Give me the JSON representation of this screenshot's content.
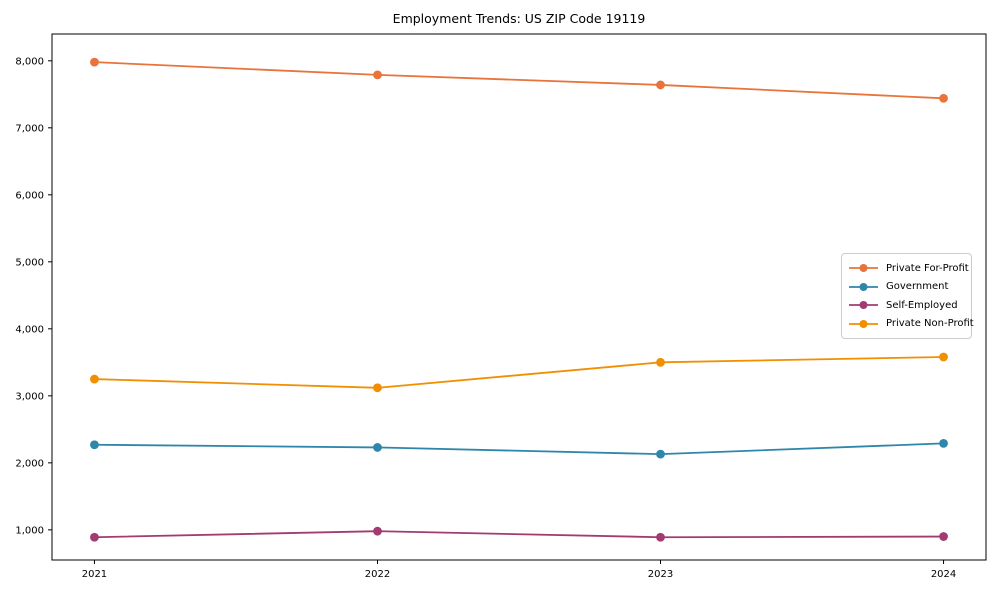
{
  "chart_data": {
    "type": "line",
    "title": "Employment Trends: US ZIP Code 19119",
    "xlabel": "",
    "ylabel": "",
    "x": [
      2021,
      2022,
      2023,
      2024
    ],
    "x_tick_labels": [
      "2021",
      "2022",
      "2023",
      "2024"
    ],
    "series": [
      {
        "name": "Private For-Profit",
        "color": "#E8743B",
        "values": [
          7980,
          7790,
          7640,
          7440
        ]
      },
      {
        "name": "Government",
        "color": "#2E86AB",
        "values": [
          2270,
          2230,
          2130,
          2290
        ]
      },
      {
        "name": "Self-Employed",
        "color": "#A23B72",
        "values": [
          890,
          980,
          890,
          900
        ]
      },
      {
        "name": "Private Non-Profit",
        "color": "#F18F01",
        "values": [
          3250,
          3120,
          3500,
          3580
        ]
      }
    ],
    "xlim": [
      2020.85,
      2024.15
    ],
    "ylim": [
      550,
      8400
    ],
    "yticks": [
      1000,
      2000,
      3000,
      4000,
      5000,
      6000,
      7000,
      8000
    ],
    "ytick_labels": [
      "1,000",
      "2,000",
      "3,000",
      "4,000",
      "5,000",
      "6,000",
      "7,000",
      "8,000"
    ],
    "grid": false,
    "legend_position": "center right",
    "marker": "circle",
    "background_color": "#ffffff",
    "axis_color": "#000000"
  }
}
